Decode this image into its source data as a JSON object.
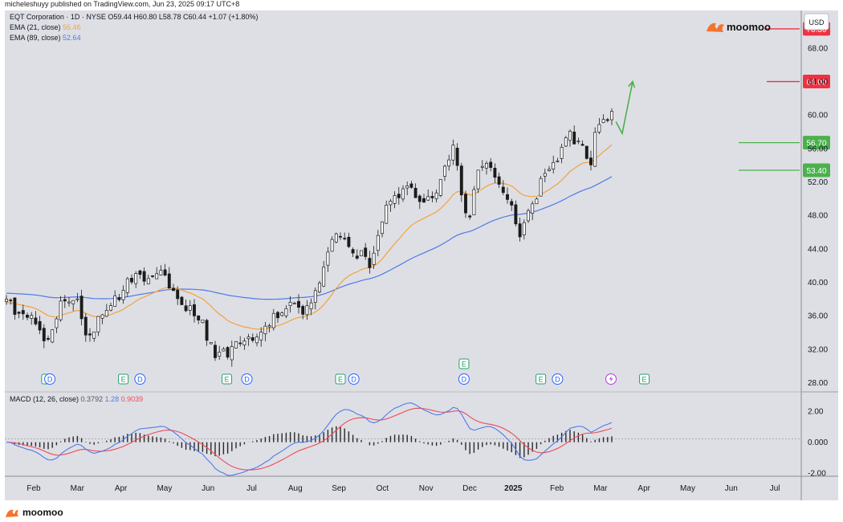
{
  "credit": "micheleshuyy published on TradingView.com, Jun 23, 2025 09:17 UTC+8",
  "brand": "moomoo",
  "footer_brand": "moomoo",
  "currency": "USD",
  "legend": {
    "symbol_line": "EQT Corporation · 1D · NYSE  O59.44  H60.80  L58.78  C60.44  +1.07 (+1.80%)",
    "ema21_label": "EMA (21, close)",
    "ema21_value": "56.46",
    "ema89_label": "EMA (89, close)",
    "ema89_value": "52.64",
    "macd_label": "MACD (12, 26, close)",
    "macd_hist": "0.3792",
    "macd_line": "1.28",
    "macd_signal": "0.9039"
  },
  "colors": {
    "background": "#ffffff",
    "plot_bg": "#dedfe5",
    "ema21": "#f4a13d",
    "ema89": "#4f7ae8",
    "macd": "#4f7ae8",
    "signal": "#ee4a56",
    "candle": "#1b1b1b",
    "target_red": "#f0313f",
    "support_green": "#4bb14c",
    "arrow_green": "#4bb14c"
  },
  "chart_data": {
    "type": "candlestick",
    "y_range": [
      27,
      72.5
    ],
    "y_ticks": [
      "68.00",
      "64.00",
      "60.00",
      "56.00",
      "52.00",
      "48.00",
      "44.00",
      "40.00",
      "36.00",
      "32.00",
      "28.00"
    ],
    "x_ticks": [
      "Feb",
      "Mar",
      "Apr",
      "May",
      "Jun",
      "Jul",
      "Aug",
      "Sep",
      "Oct",
      "Nov",
      "Dec",
      "2025",
      "Feb",
      "Mar",
      "Apr",
      "May",
      "Jun",
      "Jul"
    ],
    "price_path": [
      [
        0,
        37.5
      ],
      [
        6,
        35.6
      ],
      [
        10,
        33.1
      ],
      [
        13,
        37.6
      ],
      [
        17,
        37.3
      ],
      [
        19,
        33.3
      ],
      [
        24,
        36.5
      ],
      [
        30,
        40.5
      ],
      [
        35,
        41.0
      ],
      [
        38,
        40.5
      ],
      [
        42,
        37.5
      ],
      [
        47,
        35.0
      ],
      [
        50,
        30.6
      ],
      [
        56,
        32.5
      ],
      [
        61,
        34.5
      ],
      [
        66,
        37.0
      ],
      [
        72,
        36.7
      ],
      [
        74,
        39.0
      ],
      [
        79,
        46.5
      ],
      [
        84,
        43.5
      ],
      [
        87,
        42.2
      ],
      [
        91,
        48.5
      ],
      [
        96,
        52.2
      ],
      [
        100,
        48.8
      ],
      [
        104,
        52.2
      ],
      [
        107,
        56.0
      ],
      [
        109,
        50.6
      ],
      [
        111,
        47.5
      ],
      [
        113,
        53.2
      ],
      [
        116,
        54.2
      ],
      [
        119,
        50.0
      ],
      [
        121,
        49.4
      ],
      [
        123,
        44.8
      ],
      [
        125,
        48.2
      ],
      [
        129,
        52.8
      ],
      [
        135,
        57.4
      ],
      [
        139,
        55.5
      ],
      [
        140,
        54.4
      ],
      [
        141,
        57.8
      ],
      [
        143,
        59.6
      ],
      [
        145,
        60.4
      ]
    ],
    "price_range": [
      29.8,
      60.8
    ],
    "last": {
      "open": 59.44,
      "high": 60.8,
      "low": 58.78,
      "close": 60.44,
      "change": 1.07,
      "change_pct": 1.8
    },
    "ema21": {
      "last": 56.46
    },
    "ema89": {
      "last": 52.64
    },
    "levels": [
      {
        "label": "70.30",
        "value": 70.3,
        "color": "#f0313f"
      },
      {
        "label": "64.00",
        "value": 64.0,
        "color": "#f0313f"
      },
      {
        "label": "56.70",
        "value": 56.7,
        "color": "#4bb14c"
      },
      {
        "label": "53.40",
        "value": 53.4,
        "color": "#4bb14c"
      }
    ],
    "projection": [
      [
        146,
        59.2
      ],
      [
        147.5,
        57.8
      ],
      [
        150,
        64.0
      ]
    ],
    "events": [
      {
        "type": "E",
        "slot": 12
      },
      {
        "type": "D",
        "slot": 13
      },
      {
        "type": "E",
        "slot": 35
      },
      {
        "type": "D",
        "slot": 40
      },
      {
        "type": "E",
        "slot": 66
      },
      {
        "type": "D",
        "slot": 72
      },
      {
        "type": "E",
        "slot": 100
      },
      {
        "type": "D",
        "slot": 104
      },
      {
        "type": "D",
        "slot": 137
      },
      {
        "type": "E",
        "slot": 137
      },
      {
        "type": "E",
        "slot": 160
      },
      {
        "type": "D",
        "slot": 165
      },
      {
        "type": "S",
        "slot": 181
      },
      {
        "type": "E",
        "slot": 191
      }
    ],
    "macd": {
      "y_range": [
        -2.2,
        3.2
      ],
      "y_ticks": [
        "2.00",
        "0.000",
        "-2.00"
      ],
      "hist": 0.3792,
      "macd": 1.28,
      "signal": 0.9039
    }
  }
}
